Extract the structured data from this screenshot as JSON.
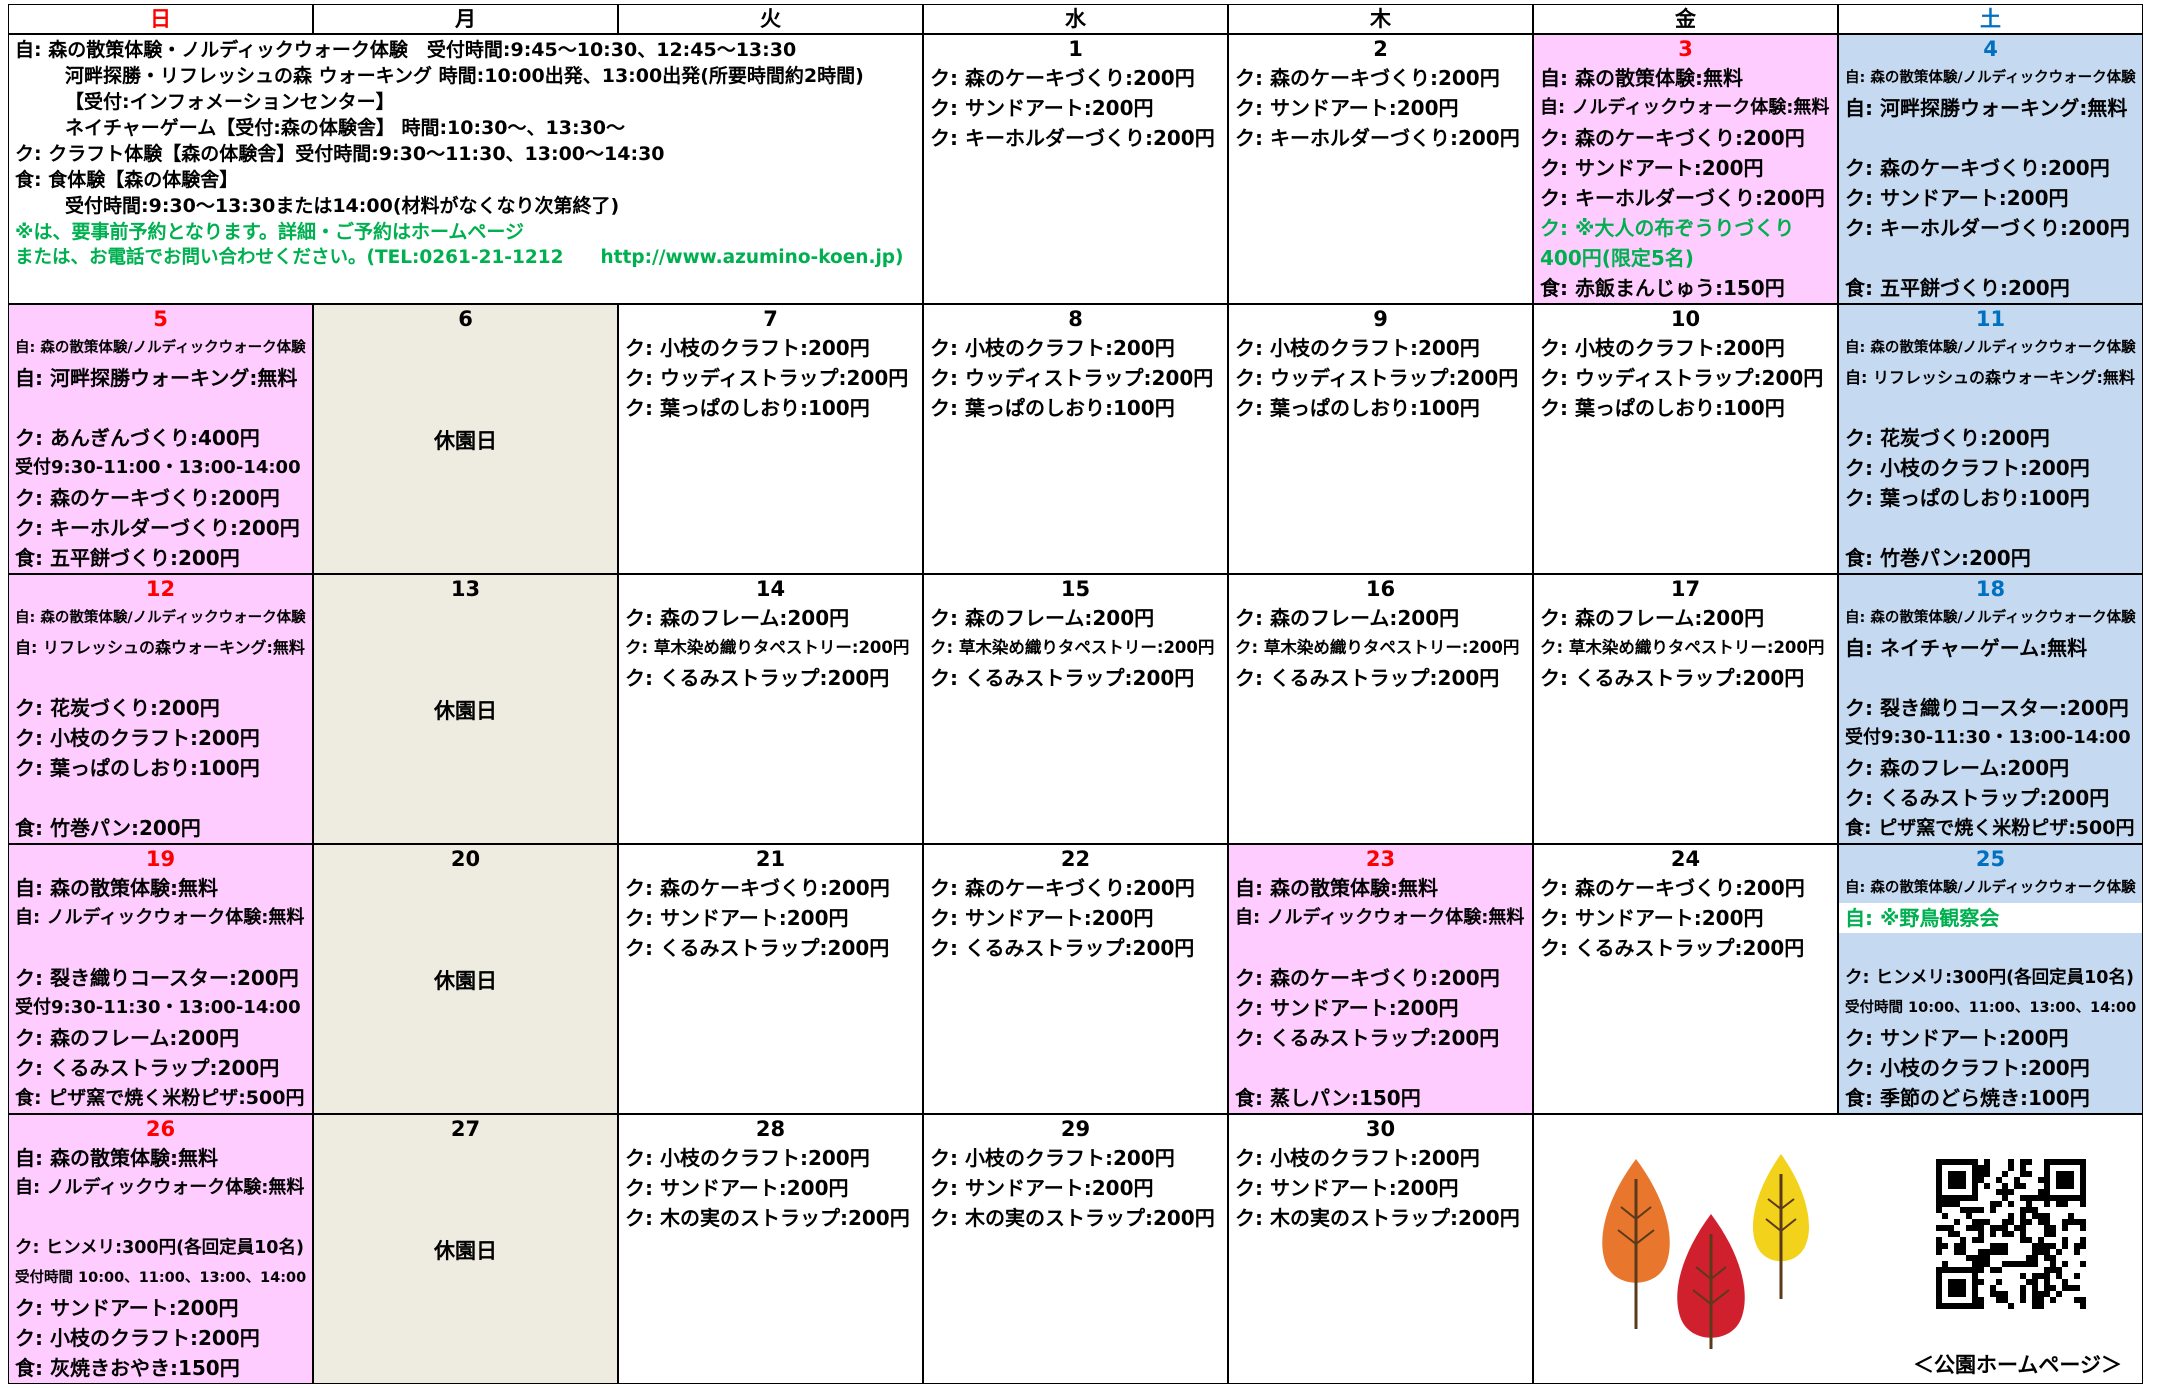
{
  "weekdays": [
    {
      "label": "日",
      "color": "#ff0000"
    },
    {
      "label": "月"
    },
    {
      "label": "火"
    },
    {
      "label": "水"
    },
    {
      "label": "木"
    },
    {
      "label": "金"
    },
    {
      "label": "土",
      "color": "#0070c0"
    }
  ],
  "intro": {
    "lines": [
      "自: 森の散策体験・ノルディックウォーク体験　受付時間:9:45～10:30、12:45～13:30",
      "河畔探勝・リフレッシュの森 ウォーキング 時間:10:00出発、13:00出発(所要時間約2時間)",
      "【受付:インフォメーションセンター】",
      "ネイチャーゲーム【受付:森の体験舎】 時間:10:30～、13:30～",
      "ク: クラフト体験【森の体験舎】受付時間:9:30～11:30、13:00～14:30",
      "食: 食体験【森の体験舎】",
      "受付時間:9:30～13:30または14:00(材料がなくなり次第終了)",
      {
        "text": "※は、要事前予約となります。詳細・ご予約はホームページ",
        "color": "#00b050"
      },
      {
        "text": "または、お電話でお問い合わせください。(TEL:0261-21-1212　　http://www.azumino-koen.jp)",
        "color": "#00b050"
      }
    ]
  },
  "weeks": [
    [
      {
        "date": "1",
        "lines": [
          "ク: 森のケーキづくり:200円",
          "ク: サンドアート:200円",
          "ク: キーホルダーづくり:200円"
        ]
      },
      {
        "date": "2",
        "lines": [
          "ク: 森のケーキづくり:200円",
          "ク: サンドアート:200円",
          "ク: キーホルダーづくり:200円"
        ]
      },
      {
        "date": "3",
        "date_color": "#ff0000",
        "bg": "#ffccff",
        "lines": [
          "自: 森の散策体験:無料",
          "自: ノルディックウォーク体験:無料",
          "ク: 森のケーキづくり:200円",
          "ク: サンドアート:200円",
          "ク: キーホルダーづくり:200円",
          {
            "text": "ク: ※大人の布ぞうりづくり",
            "color": "#00b050"
          },
          {
            "text": "400円(限定5名)",
            "color": "#00b050"
          },
          "食: 赤飯まんじゅう:150円"
        ]
      },
      {
        "date": "4",
        "date_color": "#0070c0",
        "bg": "#c5d9f1",
        "lines": [
          "自: 森の散策体験/ノルディックウォーク体験",
          "自: 河畔探勝ウォーキング:無料",
          null,
          "ク: 森のケーキづくり:200円",
          "ク: サンドアート:200円",
          "ク: キーホルダーづくり:200円",
          null,
          "食: 五平餅づくり:200円"
        ]
      }
    ],
    [
      {
        "date": "5",
        "date_color": "#ff0000",
        "bg": "#ffccff",
        "lines": [
          "自: 森の散策体験/ノルディックウォーク体験",
          "自: 河畔探勝ウォーキング:無料",
          null,
          "ク: あんぎんづくり:400円",
          "受付9:30-11:00・13:00-14:00",
          "ク: 森のケーキづくり:200円",
          "ク: キーホルダーづくり:200円",
          "食: 五平餅づくり:200円"
        ]
      },
      {
        "date": "6",
        "bg": "#eeece1",
        "note": "休園日"
      },
      {
        "date": "7",
        "lines": [
          "ク: 小枝のクラフト:200円",
          "ク: ウッディストラップ:200円",
          "ク: 葉っぱのしおり:100円"
        ]
      },
      {
        "date": "8",
        "lines": [
          "ク: 小枝のクラフト:200円",
          "ク: ウッディストラップ:200円",
          "ク: 葉っぱのしおり:100円"
        ]
      },
      {
        "date": "9",
        "lines": [
          "ク: 小枝のクラフト:200円",
          "ク: ウッディストラップ:200円",
          "ク: 葉っぱのしおり:100円"
        ]
      },
      {
        "date": "10",
        "lines": [
          "ク: 小枝のクラフト:200円",
          "ク: ウッディストラップ:200円",
          "ク: 葉っぱのしおり:100円"
        ]
      },
      {
        "date": "11",
        "date_color": "#0070c0",
        "bg": "#c5d9f1",
        "lines": [
          "自: 森の散策体験/ノルディックウォーク体験",
          "自: リフレッシュの森ウォーキング:無料",
          null,
          "ク: 花炭づくり:200円",
          "ク: 小枝のクラフト:200円",
          "ク: 葉っぱのしおり:100円",
          null,
          "食: 竹巻パン:200円"
        ]
      }
    ],
    [
      {
        "date": "12",
        "date_color": "#ff0000",
        "bg": "#ffccff",
        "lines": [
          "自: 森の散策体験/ノルディックウォーク体験",
          "自: リフレッシュの森ウォーキング:無料",
          null,
          "ク: 花炭づくり:200円",
          "ク: 小枝のクラフト:200円",
          "ク: 葉っぱのしおり:100円",
          null,
          "食: 竹巻パン:200円"
        ]
      },
      {
        "date": "13",
        "bg": "#eeece1",
        "note": "休園日"
      },
      {
        "date": "14",
        "lines": [
          "ク: 森のフレーム:200円",
          "ク: 草木染め織りタペストリー:200円",
          "ク: くるみストラップ:200円"
        ]
      },
      {
        "date": "15",
        "lines": [
          "ク: 森のフレーム:200円",
          "ク: 草木染め織りタペストリー:200円",
          "ク: くるみストラップ:200円"
        ]
      },
      {
        "date": "16",
        "lines": [
          "ク: 森のフレーム:200円",
          "ク: 草木染め織りタペストリー:200円",
          "ク: くるみストラップ:200円"
        ]
      },
      {
        "date": "17",
        "lines": [
          "ク: 森のフレーム:200円",
          "ク: 草木染め織りタペストリー:200円",
          "ク: くるみストラップ:200円"
        ]
      },
      {
        "date": "18",
        "date_color": "#0070c0",
        "bg": "#c5d9f1",
        "lines": [
          "自: 森の散策体験/ノルディックウォーク体験",
          "自: ネイチャーゲーム:無料",
          null,
          "ク: 裂き織りコースター:200円",
          "受付9:30-11:30・13:00-14:00",
          "ク: 森のフレーム:200円",
          "ク: くるみストラップ:200円",
          "食: ピザ窯で焼く米粉ピザ:500円"
        ]
      }
    ],
    [
      {
        "date": "19",
        "date_color": "#ff0000",
        "bg": "#ffccff",
        "lines": [
          "自: 森の散策体験:無料",
          "自: ノルディックウォーク体験:無料",
          null,
          "ク: 裂き織りコースター:200円",
          "受付9:30-11:30・13:00-14:00",
          "ク: 森のフレーム:200円",
          "ク: くるみストラップ:200円",
          "食: ピザ窯で焼く米粉ピザ:500円"
        ]
      },
      {
        "date": "20",
        "bg": "#eeece1",
        "note": "休園日"
      },
      {
        "date": "21",
        "lines": [
          "ク: 森のケーキづくり:200円",
          "ク: サンドアート:200円",
          "ク: くるみストラップ:200円"
        ]
      },
      {
        "date": "22",
        "lines": [
          "ク: 森のケーキづくり:200円",
          "ク: サンドアート:200円",
          "ク: くるみストラップ:200円"
        ]
      },
      {
        "date": "23",
        "date_color": "#ff0000",
        "bg": "#ffccff",
        "lines": [
          "自: 森の散策体験:無料",
          "自: ノルディックウォーク体験:無料",
          null,
          "ク: 森のケーキづくり:200円",
          "ク: サンドアート:200円",
          "ク: くるみストラップ:200円",
          null,
          "食: 蒸しパン:150円"
        ]
      },
      {
        "date": "24",
        "lines": [
          "ク: 森のケーキづくり:200円",
          "ク: サンドアート:200円",
          "ク: くるみストラップ:200円"
        ]
      },
      {
        "date": "25",
        "date_color": "#0070c0",
        "bg": "#c5d9f1",
        "lines": [
          "自: 森の散策体験/ノルディックウォーク体験",
          {
            "text": "自: ※野鳥観察会",
            "color": "#00b050",
            "bg": "#ffffff"
          },
          null,
          "ク: ヒンメリ:300円(各回定員10名)",
          "受付時間 10:00、11:00、13:00、14:00",
          "ク: サンドアート:200円",
          "ク: 小枝のクラフト:200円",
          "食: 季節のどら焼き:100円"
        ]
      }
    ],
    [
      {
        "date": "26",
        "date_color": "#ff0000",
        "bg": "#ffccff",
        "lines": [
          "自: 森の散策体験:無料",
          "自: ノルディックウォーク体験:無料",
          null,
          "ク: ヒンメリ:300円(各回定員10名)",
          "受付時間 10:00、11:00、13:00、14:00",
          "ク: サンドアート:200円",
          "ク: 小枝のクラフト:200円",
          "食: 灰焼きおやき:150円"
        ]
      },
      {
        "date": "27",
        "bg": "#eeece1",
        "note": "休園日"
      },
      {
        "date": "28",
        "lines": [
          "ク: 小枝のクラフト:200円",
          "ク: サンドアート:200円",
          "ク: 木の実のストラップ:200円"
        ]
      },
      {
        "date": "29",
        "lines": [
          "ク: 小枝のクラフト:200円",
          "ク: サンドアート:200円",
          "ク: 木の実のストラップ:200円"
        ]
      },
      {
        "date": "30",
        "lines": [
          "ク: 小枝のクラフト:200円",
          "ク: サンドアート:200円",
          "ク: 木の実のストラップ:200円"
        ]
      }
    ]
  ],
  "footer_caption": "＜公園ホームページ＞"
}
